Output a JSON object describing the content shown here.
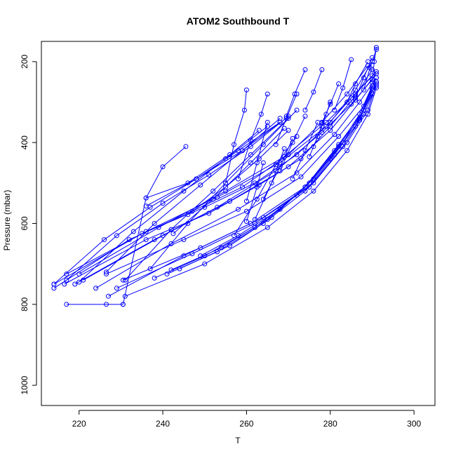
{
  "chart_data": {
    "type": "line",
    "title": "ATOM2 Southbound T",
    "xlabel": "T",
    "ylabel": "Pressure (mbar)",
    "xlim": [
      211,
      305
    ],
    "ylim": [
      1050,
      150
    ],
    "y_axis_reversed": true,
    "grid": false,
    "legend": "none",
    "x_ticks": [
      220,
      240,
      260,
      280,
      300
    ],
    "y_ticks": [
      1000,
      800,
      600,
      400,
      200
    ],
    "colors": {
      "series": "#0000FF",
      "axis": "#000000"
    },
    "series": [
      {
        "x": [
          214,
          235,
          250,
          262,
          272,
          280,
          286,
          290
        ],
        "y": [
          750,
          625,
          560,
          500,
          430,
          350,
          270,
          200
        ]
      },
      {
        "x": [
          214,
          232,
          247,
          259,
          270,
          278,
          284,
          289
        ],
        "y": [
          760,
          640,
          570,
          510,
          430,
          350,
          280,
          210
        ]
      },
      {
        "x": [
          216.5,
          236,
          251,
          263,
          273,
          280,
          286,
          290
        ],
        "y": [
          750,
          640,
          575,
          505,
          440,
          360,
          285,
          220
        ]
      },
      {
        "x": [
          217,
          236,
          253,
          268,
          279,
          285,
          290
        ],
        "y": [
          725,
          620,
          535,
          450,
          360,
          290,
          235
        ]
      },
      {
        "x": [
          219,
          238,
          253,
          267,
          278,
          285,
          290
        ],
        "y": [
          750,
          640,
          560,
          470,
          375,
          305,
          245
        ]
      },
      {
        "x": [
          220,
          239,
          255,
          269,
          279,
          286,
          291
        ],
        "y": [
          725,
          610,
          520,
          435,
          350,
          280,
          225
        ]
      },
      {
        "x": [
          221,
          240,
          256,
          270,
          280,
          286,
          291
        ],
        "y": [
          740,
          630,
          545,
          460,
          370,
          295,
          230
        ]
      },
      {
        "x": [
          224,
          242,
          258,
          272,
          281,
          287,
          291
        ],
        "y": [
          760,
          650,
          565,
          475,
          380,
          300,
          240
        ]
      },
      {
        "x": [
          226.5,
          245,
          260,
          273,
          282,
          288,
          291
        ],
        "y": [
          725,
          640,
          570,
          485,
          385,
          310,
          240
        ]
      },
      {
        "x": [
          227,
          245,
          261,
          274,
          282,
          288,
          291
        ],
        "y": [
          780,
          680,
          600,
          510,
          405,
          320,
          250
        ]
      },
      {
        "x": [
          229,
          247,
          262,
          275,
          283,
          288,
          291
        ],
        "y": [
          760,
          675,
          600,
          510,
          410,
          330,
          260
        ]
      },
      {
        "x": [
          230.5,
          249,
          264,
          276,
          284,
          289,
          291
        ],
        "y": [
          740,
          660,
          585,
          500,
          400,
          320,
          255
        ]
      },
      {
        "x": [
          231,
          250,
          265,
          276,
          284,
          289,
          291
        ],
        "y": [
          780,
          700,
          610,
          520,
          420,
          330,
          265
        ]
      },
      {
        "x": [
          238,
          250,
          262,
          272,
          280,
          286,
          290
        ],
        "y": [
          735,
          680,
          610,
          530,
          440,
          360,
          280
        ]
      },
      {
        "x": [
          241,
          253,
          264,
          274,
          281,
          287,
          290
        ],
        "y": [
          725,
          670,
          600,
          520,
          430,
          345,
          270
        ]
      },
      {
        "x": [
          242,
          254,
          265,
          274,
          281,
          287,
          290
        ],
        "y": [
          715,
          660,
          590,
          510,
          420,
          340,
          265
        ]
      },
      {
        "x": [
          244,
          256,
          266,
          275,
          282,
          287,
          290
        ],
        "y": [
          712,
          655,
          585,
          500,
          410,
          330,
          260
        ]
      },
      {
        "x": [
          249,
          258,
          268,
          276,
          283,
          288,
          291
        ],
        "y": [
          680,
          630,
          565,
          490,
          400,
          320,
          250
        ]
      },
      {
        "x": [
          214,
          226,
          237,
          248,
          258,
          268
        ],
        "y": [
          750,
          640,
          560,
          490,
          420,
          350
        ]
      },
      {
        "x": [
          217,
          229,
          240,
          251,
          261,
          270
        ],
        "y": [
          740,
          630,
          550,
          480,
          410,
          335
        ]
      },
      {
        "x": [
          220,
          233,
          245,
          255,
          265
        ],
        "y": [
          745,
          620,
          520,
          440,
          360
        ]
      },
      {
        "x": [
          226.5,
          238,
          249,
          259,
          268
        ],
        "y": [
          720,
          600,
          505,
          420,
          340
        ]
      },
      {
        "x": [
          231,
          242,
          252,
          261,
          270
        ],
        "y": [
          740,
          615,
          520,
          430,
          340
        ]
      },
      {
        "x": [
          237,
          246,
          255,
          264,
          272
        ],
        "y": [
          712,
          600,
          500,
          405,
          320
        ]
      },
      {
        "x": [
          217,
          226.5,
          230.5
        ],
        "y": [
          800,
          800,
          800
        ]
      },
      {
        "x": [
          230.5,
          236,
          240,
          245.5
        ],
        "y": [
          800,
          537,
          460,
          410
        ]
      },
      {
        "x": [
          236,
          246,
          256,
          263
        ],
        "y": [
          537,
          500,
          430,
          370
        ]
      },
      {
        "x": [
          236,
          248,
          259,
          268
        ],
        "y": [
          557,
          490,
          420,
          350
        ]
      },
      {
        "x": [
          242.5,
          252,
          261,
          269
        ],
        "y": [
          625,
          540,
          450,
          365
        ]
      },
      {
        "x": [
          246,
          255,
          263,
          270
        ],
        "y": [
          578,
          510,
          440,
          370
        ]
      },
      {
        "x": [
          257,
          262.5,
          267,
          272
        ],
        "y": [
          630,
          540,
          455,
          385
        ]
      },
      {
        "x": [
          260,
          262.5,
          264
        ],
        "y": [
          595,
          510,
          450
        ]
      },
      {
        "x": [
          262,
          266,
          269
        ],
        "y": [
          590,
          500,
          415
        ]
      },
      {
        "x": [
          258,
          261,
          263.5,
          265
        ],
        "y": [
          490,
          395,
          330,
          280
        ]
      },
      {
        "x": [
          255,
          257,
          259.5,
          260
        ],
        "y": [
          500,
          405,
          320,
          270
        ]
      },
      {
        "x": [
          260,
          262.5,
          265
        ],
        "y": [
          545,
          450,
          350
        ]
      },
      {
        "x": [
          267,
          269.5,
          272
        ],
        "y": [
          405,
          340,
          280
        ]
      },
      {
        "x": [
          269.5,
          271.5,
          274
        ],
        "y": [
          335,
          280,
          220
        ]
      },
      {
        "x": [
          271,
          274,
          277
        ],
        "y": [
          490,
          420,
          350
        ]
      },
      {
        "x": [
          274,
          276,
          278
        ],
        "y": [
          320,
          275,
          220
        ]
      },
      {
        "x": [
          278,
          280,
          282
        ],
        "y": [
          352,
          305,
          255
        ]
      },
      {
        "x": [
          281,
          283,
          285
        ],
        "y": [
          320,
          265,
          195
        ]
      },
      {
        "x": [
          284,
          286,
          289
        ],
        "y": [
          300,
          255,
          200
        ]
      },
      {
        "x": [
          288,
          289.5,
          291
        ],
        "y": [
          270,
          215,
          170
        ]
      },
      {
        "x": [
          290,
          290.5,
          291
        ],
        "y": [
          250,
          200,
          165
        ]
      },
      {
        "x": [
          275,
          277,
          279
        ],
        "y": [
          435,
          385,
          330
        ]
      },
      {
        "x": [
          276,
          278,
          280
        ],
        "y": [
          410,
          360,
          300
        ]
      },
      {
        "x": [
          268,
          271,
          274
        ],
        "y": [
          470,
          400,
          335
        ]
      },
      {
        "x": [
          264,
          268,
          271
        ],
        "y": [
          540,
          460,
          390
        ]
      },
      {
        "x": [
          286,
          288,
          290
        ],
        "y": [
          290,
          240,
          190
        ]
      }
    ]
  }
}
